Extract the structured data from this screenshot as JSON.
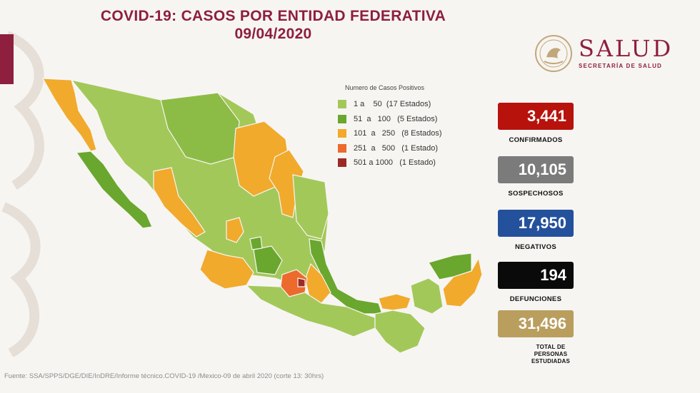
{
  "title": {
    "line1": "COVID-19: CASOS POR ENTIDAD FEDERATIVA",
    "line2": "09/04/2020"
  },
  "logo": {
    "word": "SALUD",
    "subtitle": "SECRETARÍA DE SALUD",
    "icon": "seal-icon"
  },
  "legend": {
    "title": "Numero de Casos Positivos",
    "items": [
      {
        "label": "1 a    50  (17 Estados)",
        "color": "#a3c85a"
      },
      {
        "label": "51  a   100   (5 Estados)",
        "color": "#6aa72e"
      },
      {
        "label": "101  a   250   (8 Estados)",
        "color": "#f1aa2c"
      },
      {
        "label": "251  a   500   (1 Estado)",
        "color": "#ec6a2c"
      },
      {
        "label": "501 a 1000   (1 Estado)",
        "color": "#9a2b24"
      }
    ]
  },
  "stats": [
    {
      "value": "3,441",
      "label": "CONFIRMADOS",
      "color": "#b8120d"
    },
    {
      "value": "10,105",
      "label": "SOSPECHOSOS",
      "color": "#7b7b7b"
    },
    {
      "value": "17,950",
      "label": "NEGATIVOS",
      "color": "#24519c"
    },
    {
      "value": "194",
      "label": "DEFUNCIONES",
      "color": "#0a0a0a"
    },
    {
      "value": "31,496",
      "label": "TOTAL DE PERSONAS ESTUDIADAS",
      "color": "#b99e5e"
    }
  ],
  "source": "Fuente: SSA/SPPS/DGE/DIE/InDRE/Informe técnico.COVID-19 /Mexico-09 de abril 2020 (corte 13: 30hrs)"
}
